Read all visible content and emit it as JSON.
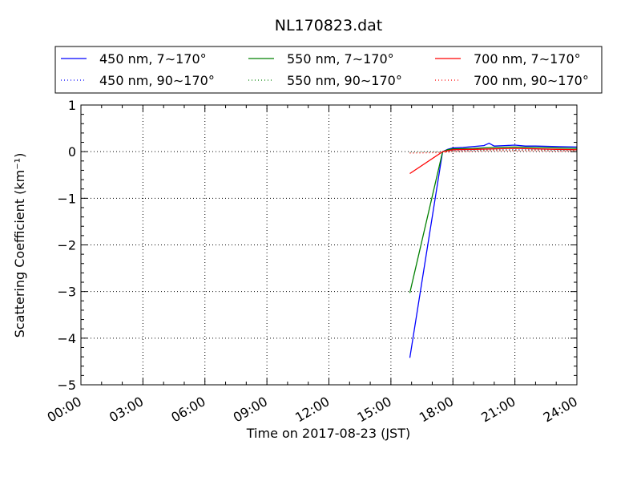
{
  "chart_data": {
    "type": "line",
    "title": "NL170823.dat",
    "xlabel": "Time on 2017-08-23 (JST)",
    "ylabel": "Scattering Coefficient (km⁻¹)",
    "xlim": [
      "00:00",
      "24:00"
    ],
    "ylim": [
      -5,
      1
    ],
    "x_tick_labels": [
      "00:00",
      "03:00",
      "06:00",
      "09:00",
      "12:00",
      "15:00",
      "18:00",
      "21:00",
      "24:00"
    ],
    "y_tick_labels": [
      "−5",
      "−4",
      "−3",
      "−2",
      "−1",
      "0",
      "1"
    ],
    "grid": true,
    "legend_position": "top",
    "series": [
      {
        "name": "450 nm, 7∼170°",
        "color": "#0000ff",
        "style": "solid",
        "x": [
          "15:55",
          "17:30",
          "17:45",
          "18:00",
          "18:30",
          "19:00",
          "19:30",
          "19:45",
          "20:00",
          "20:30",
          "21:00",
          "21:30",
          "22:00",
          "23:00",
          "24:00"
        ],
        "y": [
          -4.42,
          0.0,
          0.05,
          0.08,
          0.09,
          0.11,
          0.13,
          0.18,
          0.12,
          0.13,
          0.14,
          0.12,
          0.12,
          0.11,
          0.1
        ]
      },
      {
        "name": "450 nm, 90∼170°",
        "color": "#0000ff",
        "style": "dotted",
        "x": [
          "15:55",
          "17:30",
          "18:00",
          "19:00",
          "20:00",
          "21:00",
          "22:00",
          "23:00",
          "24:00"
        ],
        "y": [
          -0.02,
          -0.01,
          0.02,
          0.03,
          0.04,
          0.04,
          0.04,
          0.03,
          0.03
        ]
      },
      {
        "name": "550 nm, 7∼170°",
        "color": "#008000",
        "style": "solid",
        "x": [
          "15:55",
          "17:30",
          "17:45",
          "18:00",
          "19:00",
          "20:00",
          "21:00",
          "22:00",
          "23:00",
          "24:00"
        ],
        "y": [
          -3.03,
          0.0,
          0.04,
          0.06,
          0.07,
          0.09,
          0.1,
          0.09,
          0.08,
          0.07
        ]
      },
      {
        "name": "550 nm, 90∼170°",
        "color": "#008000",
        "style": "dotted",
        "x": [
          "15:55",
          "17:30",
          "18:00",
          "19:00",
          "20:00",
          "21:00",
          "22:00",
          "23:00",
          "24:00"
        ],
        "y": [
          -0.02,
          -0.01,
          0.01,
          0.02,
          0.03,
          0.03,
          0.03,
          0.02,
          0.02
        ]
      },
      {
        "name": "700 nm, 7∼170°",
        "color": "#ff0000",
        "style": "solid",
        "x": [
          "15:55",
          "17:30",
          "17:45",
          "18:00",
          "19:00",
          "20:00",
          "21:00",
          "22:00",
          "23:00",
          "24:00"
        ],
        "y": [
          -0.47,
          0.0,
          0.02,
          0.04,
          0.05,
          0.06,
          0.07,
          0.06,
          0.05,
          0.04
        ]
      },
      {
        "name": "700 nm, 90∼170°",
        "color": "#ff0000",
        "style": "dotted",
        "x": [
          "15:55",
          "17:30",
          "18:00",
          "19:00",
          "20:00",
          "21:00",
          "22:00",
          "23:00",
          "24:00"
        ],
        "y": [
          -0.03,
          -0.02,
          0.0,
          0.01,
          0.02,
          0.02,
          0.02,
          0.01,
          0.01
        ]
      }
    ]
  }
}
